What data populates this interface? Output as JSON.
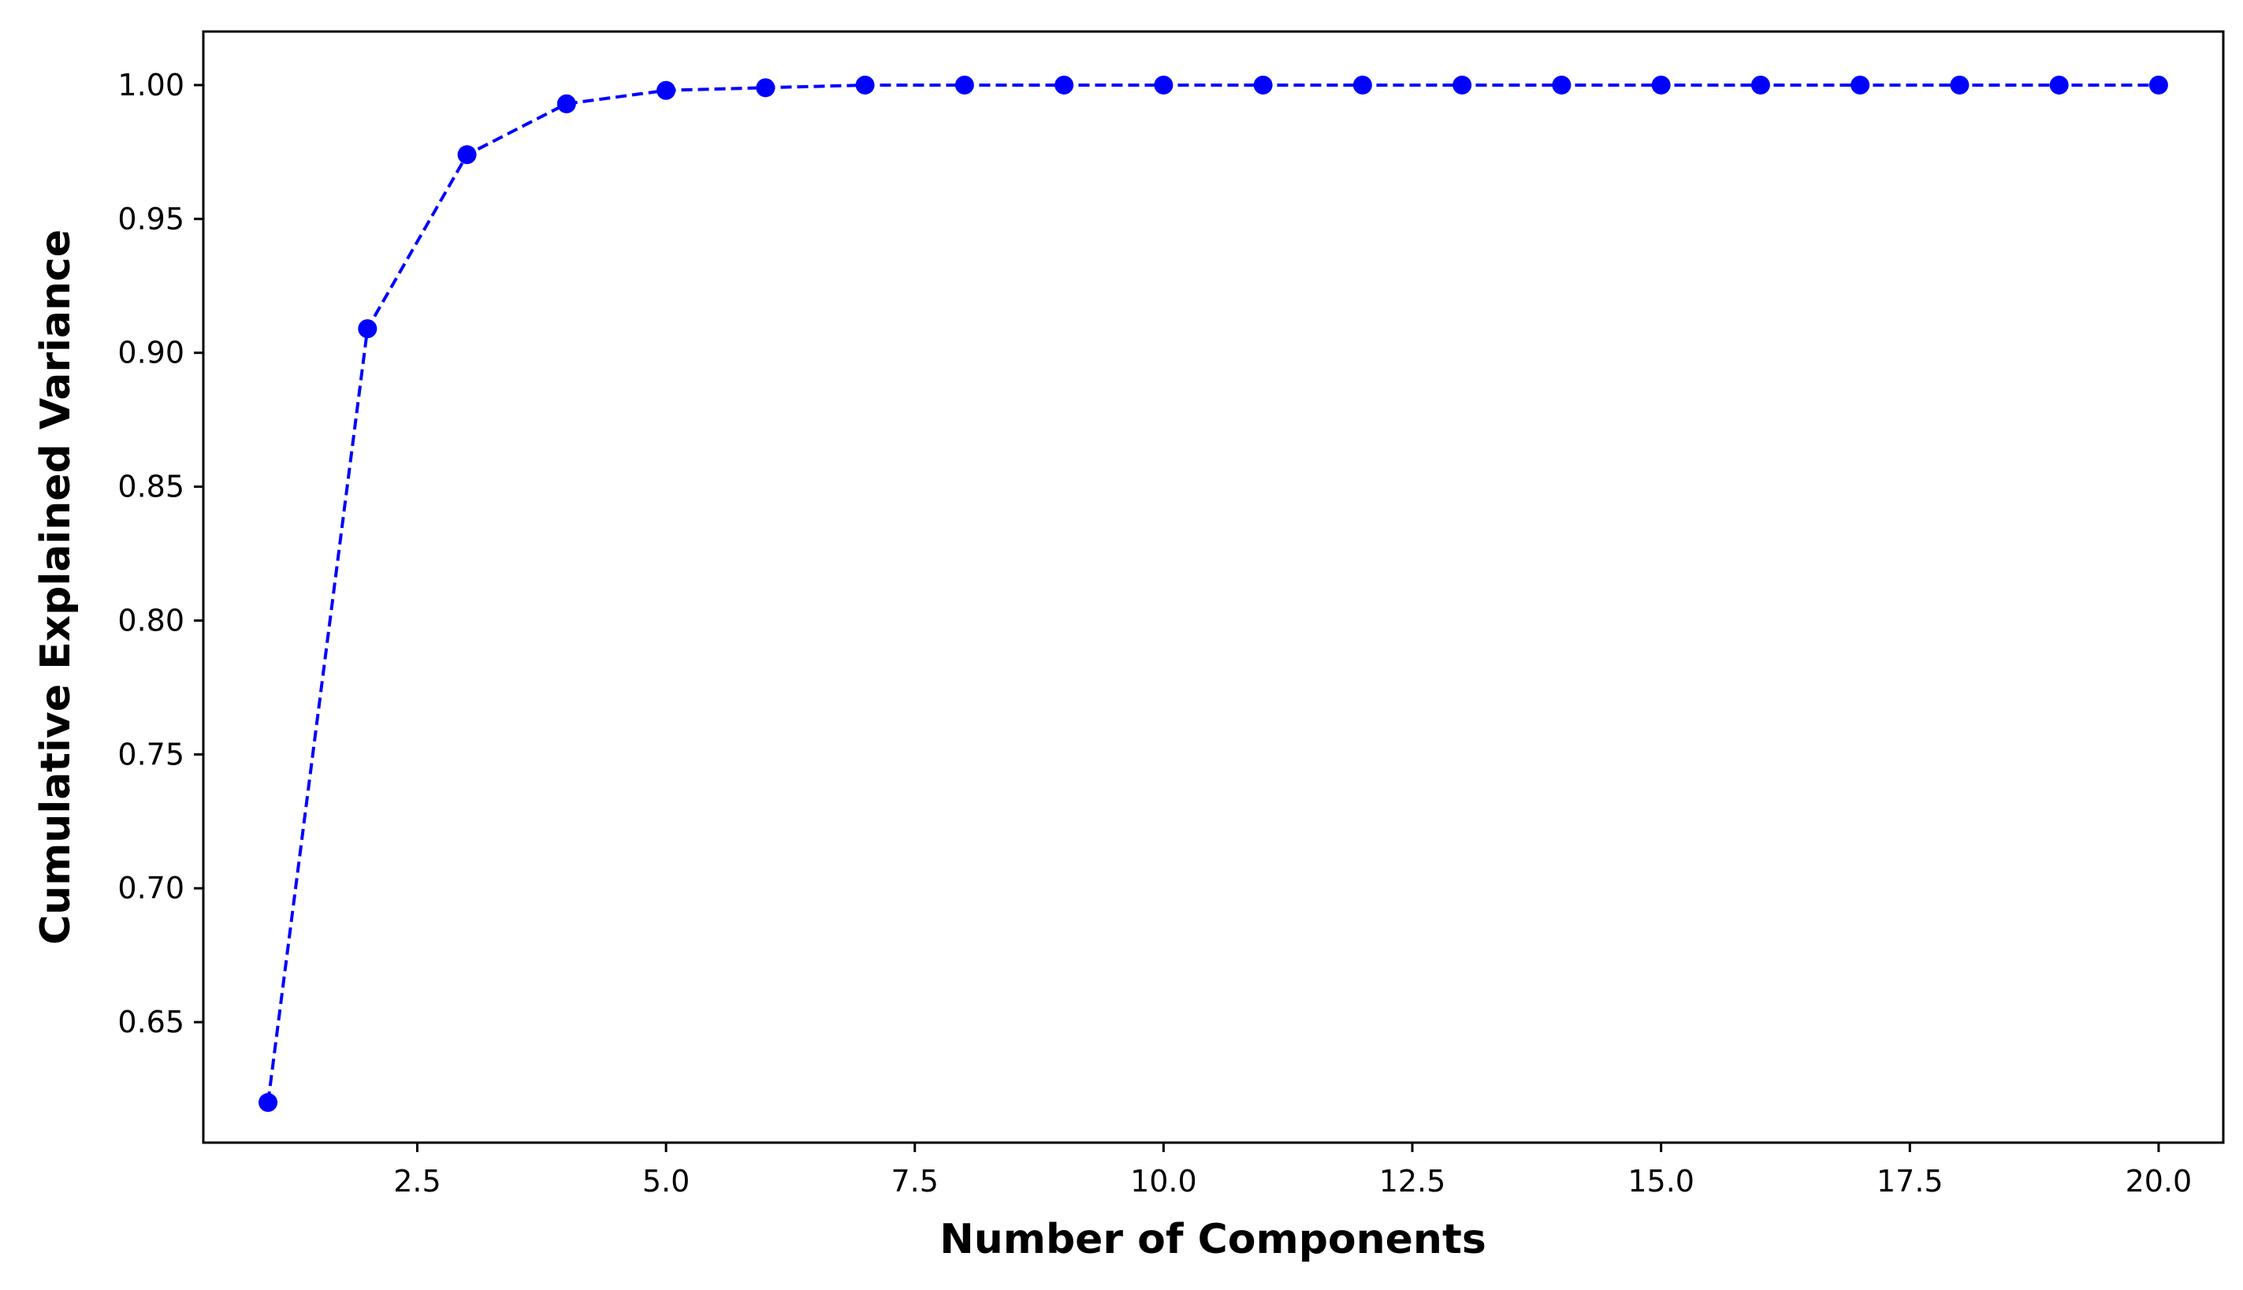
{
  "chart_data": {
    "type": "line",
    "title": "",
    "xlabel": "Number of Components",
    "ylabel": "Cumulative Explained Variance",
    "xlim": [
      0.35,
      20.65
    ],
    "ylim": [
      0.605,
      1.02
    ],
    "x_ticks": [
      2.5,
      5.0,
      7.5,
      10.0,
      12.5,
      15.0,
      17.5,
      20.0
    ],
    "x_tick_labels": [
      "2.5",
      "5.0",
      "7.5",
      "10.0",
      "12.5",
      "15.0",
      "17.5",
      "20.0"
    ],
    "y_ticks": [
      0.65,
      0.7,
      0.75,
      0.8,
      0.85,
      0.9,
      0.95,
      1.0
    ],
    "y_tick_labels": [
      "0.65",
      "0.70",
      "0.75",
      "0.80",
      "0.85",
      "0.90",
      "0.95",
      "1.00"
    ],
    "grid": false,
    "series": [
      {
        "line_style": "dashed",
        "marker": "circle",
        "color": "#0000ff",
        "x": [
          1,
          2,
          3,
          4,
          5,
          6,
          7,
          8,
          9,
          10,
          11,
          12,
          13,
          14,
          15,
          16,
          17,
          18,
          19,
          20
        ],
        "y": [
          0.62,
          0.909,
          0.974,
          0.993,
          0.998,
          0.999,
          1.0,
          1.0,
          1.0,
          1.0,
          1.0,
          1.0,
          1.0,
          1.0,
          1.0,
          1.0,
          1.0,
          1.0,
          1.0,
          1.0
        ]
      }
    ]
  }
}
